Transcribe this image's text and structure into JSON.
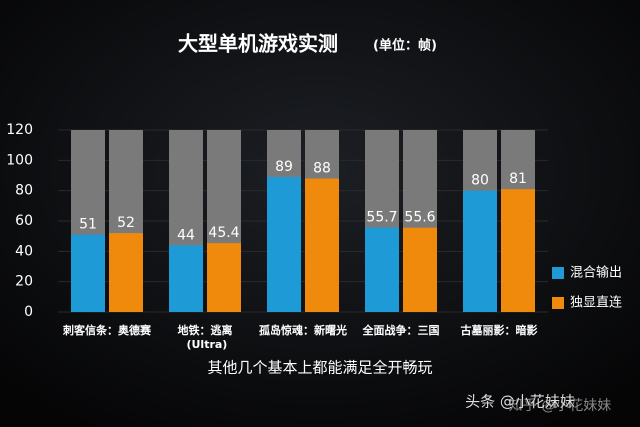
{
  "chart_data": {
    "type": "bar",
    "title": "大型单机游戏实测",
    "subtitle": "(单位：帧)",
    "caption": "其他几个基本上都能满足全开畅玩",
    "watermarks": [
      "头条 @小花妹妹",
      "知乎 @小花妹妹"
    ],
    "categories": [
      "刺客信条：奥德赛",
      "地铁：逃离 (Ultra)",
      "孤岛惊魂：新曙光",
      "全面战争：三国",
      "古墓丽影：暗影"
    ],
    "series": [
      {
        "name": "混合输出",
        "color": "#1e9bd7",
        "values": [
          51,
          44,
          89,
          55.7,
          80
        ]
      },
      {
        "name": "独显直连",
        "color": "#f08a0c",
        "values": [
          52,
          45.4,
          88,
          55.6,
          81
        ]
      }
    ],
    "ylim": [
      0,
      120
    ],
    "yticks": [
      0,
      20,
      40,
      60,
      80,
      100,
      120
    ],
    "grid": true,
    "legend": "right"
  }
}
